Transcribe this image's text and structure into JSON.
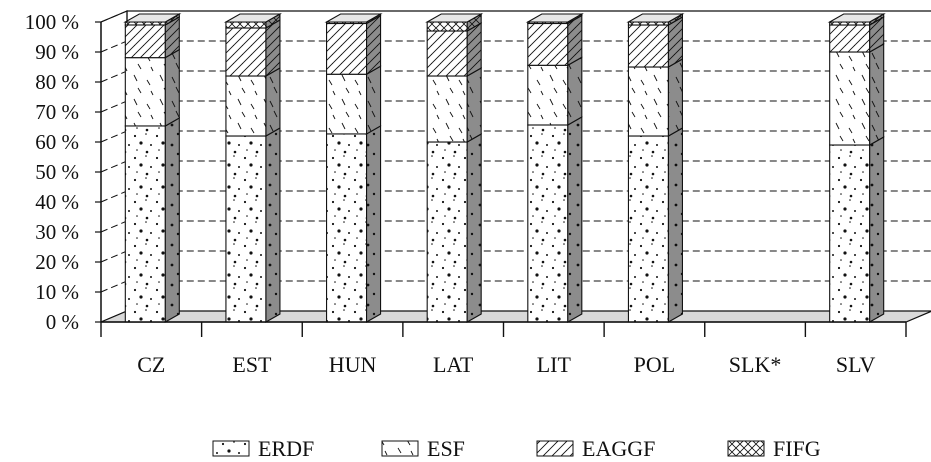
{
  "chart_data": {
    "type": "bar",
    "stacked": true,
    "percent_stacked": true,
    "three_d": true,
    "categories": [
      "CZ",
      "EST",
      "HUN",
      "LAT",
      "LIT",
      "POL",
      "SLK*",
      "SLV"
    ],
    "series": [
      {
        "name": "ERDF",
        "pattern": "dots",
        "values": [
          66,
          62,
          63,
          60,
          66,
          62,
          0,
          59
        ]
      },
      {
        "name": "ESF",
        "pattern": "slashes",
        "values": [
          23,
          20,
          20,
          22,
          20,
          23,
          0,
          31
        ]
      },
      {
        "name": "EAGGF",
        "pattern": "diagonal",
        "values": [
          11,
          16,
          17,
          15,
          14,
          14,
          0,
          9
        ]
      },
      {
        "name": "FIFG",
        "pattern": "crosshatch",
        "values": [
          1,
          2,
          0.5,
          3,
          0.5,
          1,
          0,
          1
        ]
      }
    ],
    "y_ticks": [
      "0 %",
      "10 %",
      "20 %",
      "30 %",
      "40 %",
      "50 %",
      "60 %",
      "70 %",
      "80 %",
      "90 %",
      "100 %"
    ],
    "ylim": [
      0,
      100
    ],
    "grid": "dashed horizontal",
    "legend_position": "bottom",
    "colors": {
      "side_face": "#8c8c8c",
      "top_face": "#e6e6e6",
      "floor": "#d9d9d9",
      "ink": "#111111"
    }
  }
}
